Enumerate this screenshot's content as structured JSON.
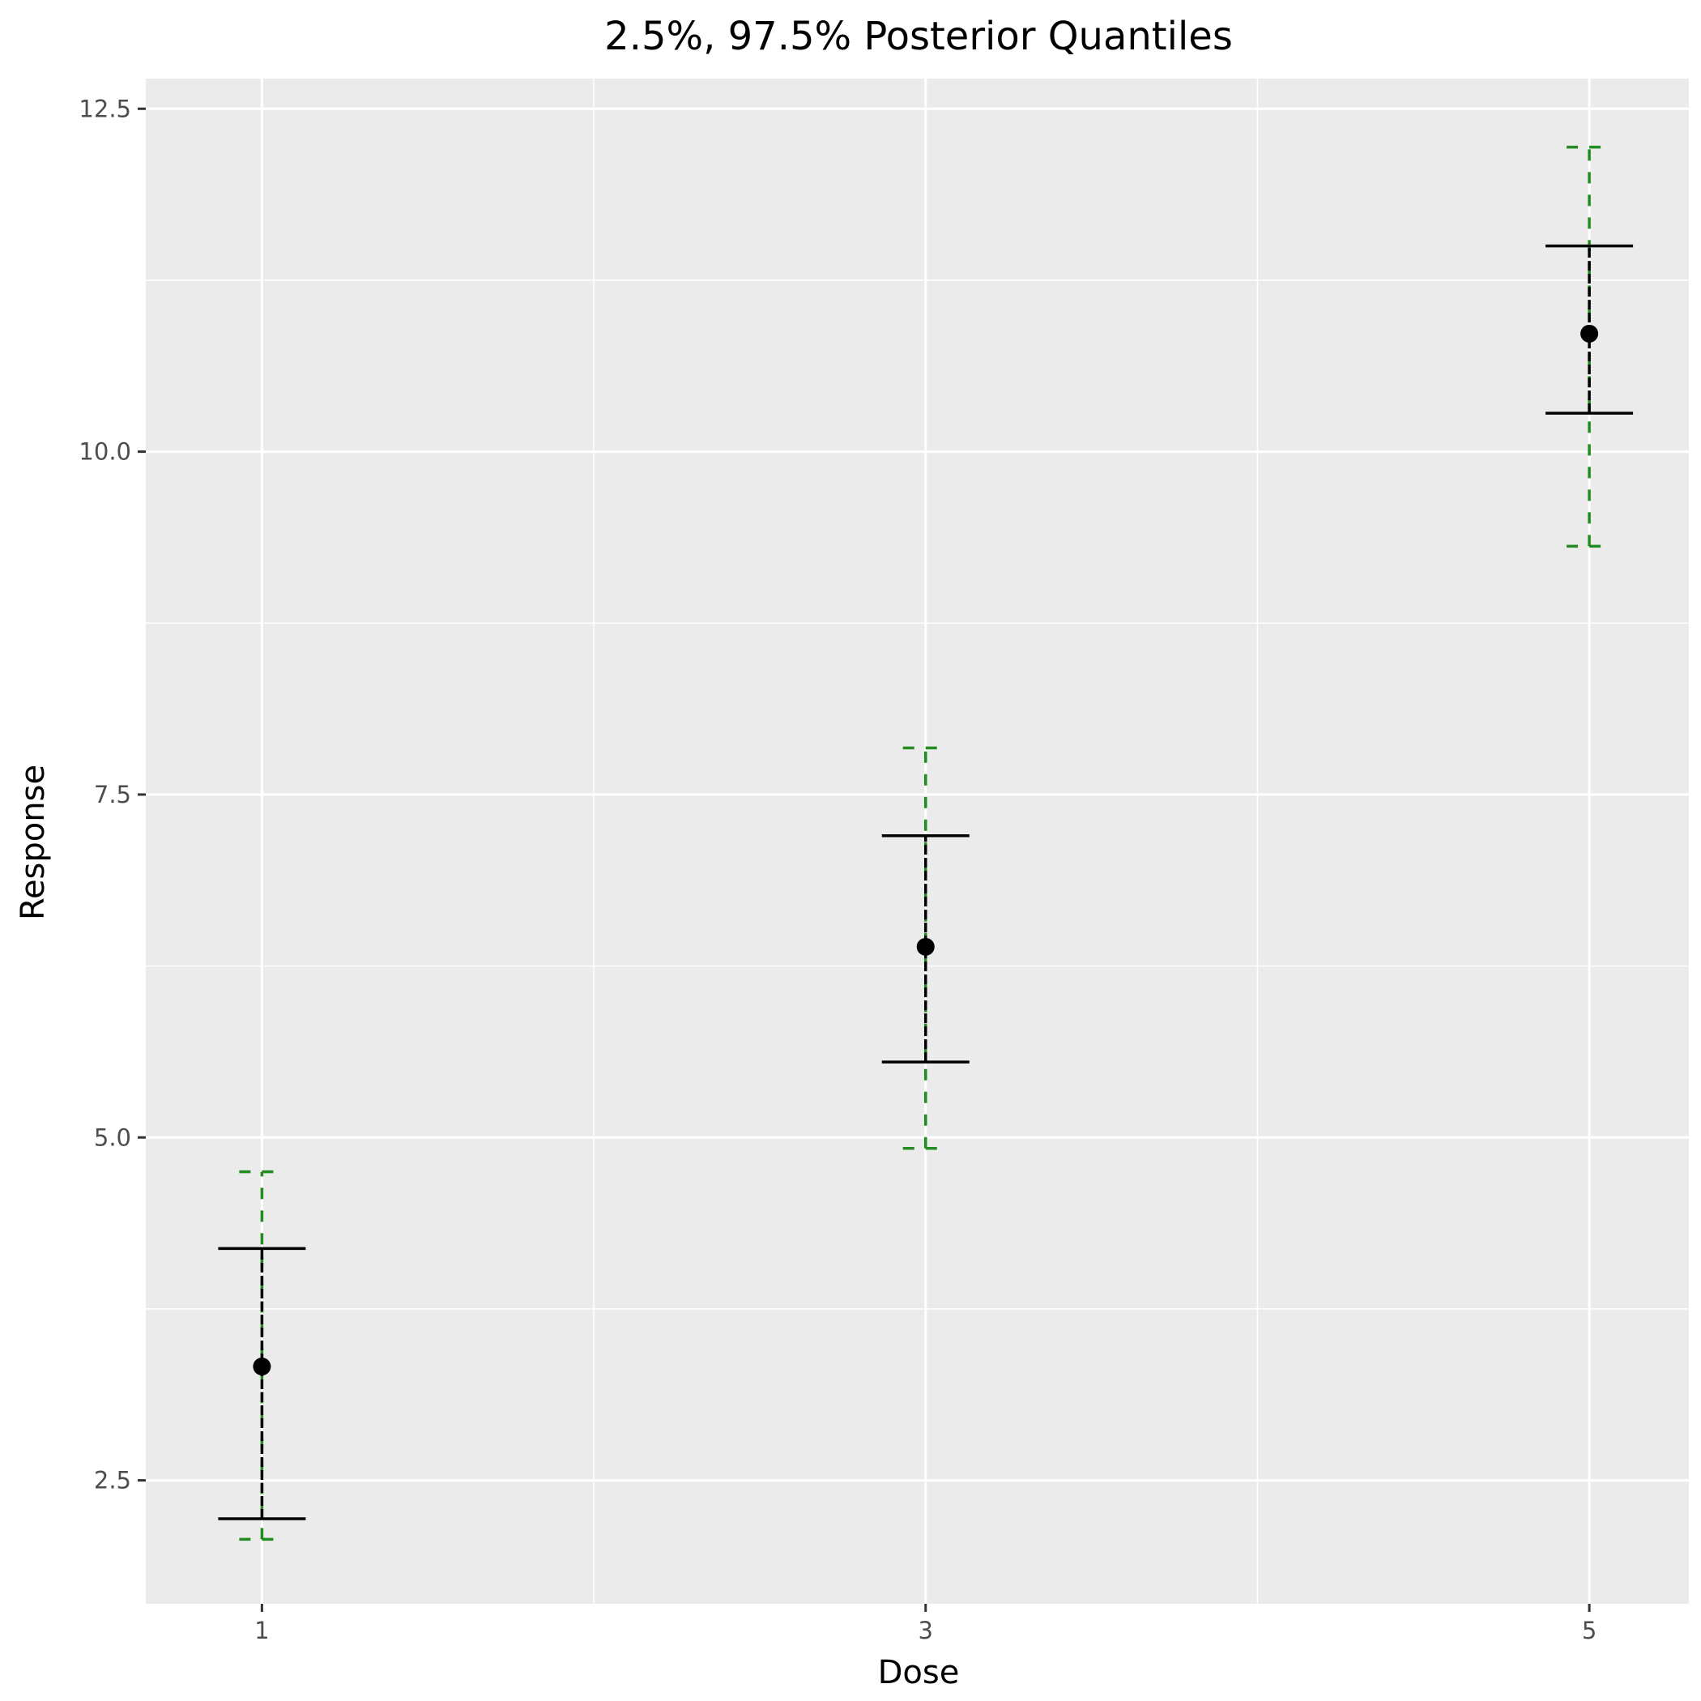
{
  "chart_data": {
    "type": "errorbar",
    "title": "2.5%, 97.5% Posterior Quantiles",
    "xlabel": "Dose",
    "ylabel": "Response",
    "x_ticks": [
      1,
      3,
      5
    ],
    "x_tick_labels": [
      "1",
      "3",
      "5"
    ],
    "y_ticks": [
      2.5,
      5,
      7.5,
      10,
      12.5
    ],
    "y_tick_labels": [
      "2.5",
      "5.0",
      "7.5",
      "10.0",
      "12.5"
    ],
    "xlim": [
      0.65,
      5.3
    ],
    "ylim": [
      1.6,
      12.72
    ],
    "grid": true,
    "points": [
      {
        "dose": 1,
        "estimate": 3.33,
        "inner_lower": 2.22,
        "inner_upper": 4.19,
        "outer_lower": 2.07,
        "outer_upper": 4.75
      },
      {
        "dose": 3,
        "estimate": 6.39,
        "inner_lower": 5.55,
        "inner_upper": 7.2,
        "outer_lower": 4.92,
        "outer_upper": 7.84
      },
      {
        "dose": 5,
        "estimate": 10.86,
        "inner_lower": 10.28,
        "inner_upper": 11.5,
        "outer_lower": 9.31,
        "outer_upper": 12.22
      }
    ],
    "colors": {
      "panel": "#EBEBEB",
      "grid": "#FFFFFF",
      "inner_interval": "#000000",
      "outer_interval": "#228B22",
      "point": "#000000",
      "tick": "#333333"
    }
  }
}
